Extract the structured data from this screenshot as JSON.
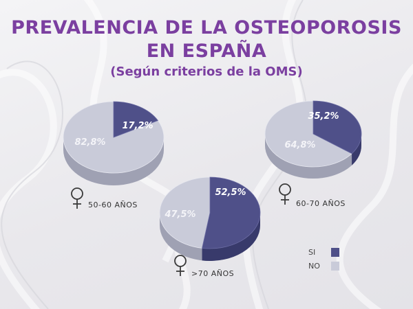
{
  "header": {
    "title_line1": "PREVALENCIA DE LA OSTEOPOROSIS",
    "title_line2": "EN ESPAÑA",
    "subtitle": "(Según criterios de la OMS)"
  },
  "colors": {
    "si": "#4f5089",
    "si_side": "#383a6b",
    "no": "#c9cbd9",
    "no_side": "#9fa1b3",
    "title": "#7b3fa0"
  },
  "legend": {
    "si_label": "SI",
    "no_label": "NO"
  },
  "chart_data": [
    {
      "type": "pie",
      "group": "50-60 AÑOS",
      "categories": [
        "SI",
        "NO"
      ],
      "values": [
        17.2,
        82.8
      ],
      "value_labels": [
        "17,2%",
        "82,8%"
      ]
    },
    {
      "type": "pie",
      "group": "60-70 AÑOS",
      "categories": [
        "SI",
        "NO"
      ],
      "values": [
        35.2,
        64.8
      ],
      "value_labels": [
        "35,2%",
        "64,8%"
      ]
    },
    {
      "type": "pie",
      "group": ">70 AÑOS",
      "categories": [
        "SI",
        "NO"
      ],
      "values": [
        52.5,
        47.5
      ],
      "value_labels": [
        "52,5%",
        "47,5%"
      ]
    }
  ]
}
